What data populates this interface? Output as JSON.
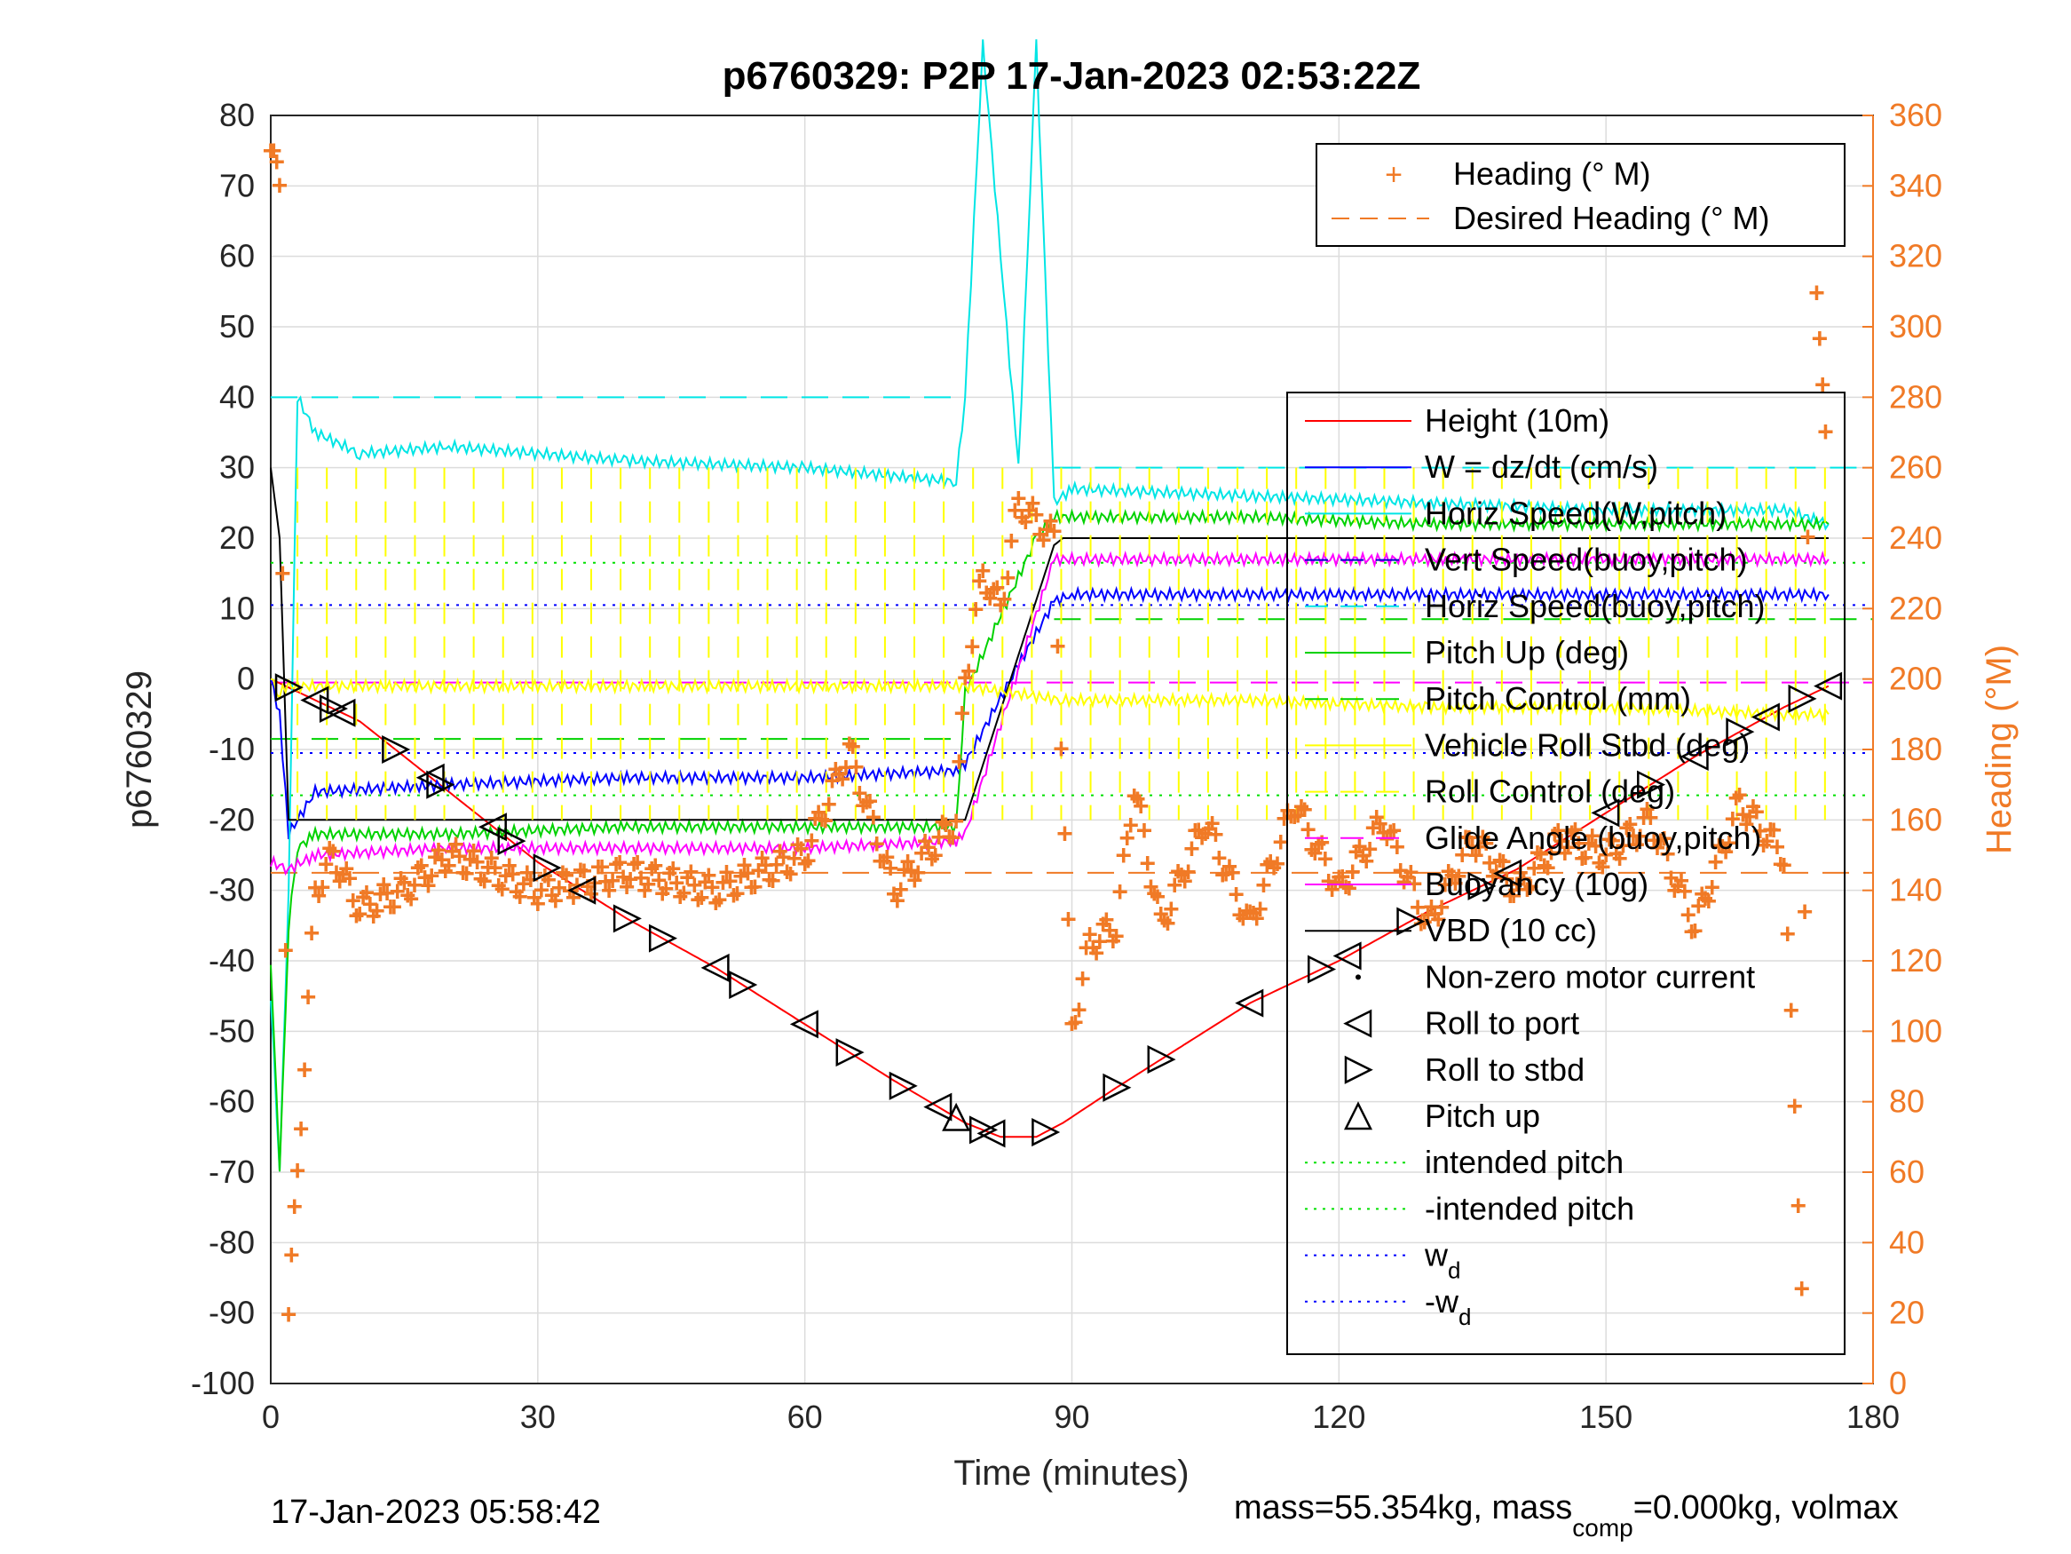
{
  "chart_data": {
    "type": "line",
    "title": "p6760329: P2P 17-Jan-2023 02:53:22Z",
    "xlabel": "Time (minutes)",
    "ylabel": "p6760329",
    "ylabel_right": "Heading (°M)",
    "xlim": [
      0,
      180
    ],
    "ylim": [
      -100,
      80
    ],
    "ylim_right": [
      0,
      360
    ],
    "x_ticks": [
      "0",
      "30",
      "60",
      "90",
      "120",
      "150",
      "180"
    ],
    "y_ticks": [
      "80",
      "70",
      "60",
      "50",
      "40",
      "30",
      "20",
      "10",
      "0",
      "-10",
      "-20",
      "-30",
      "-40",
      "-50",
      "-60",
      "-70",
      "-80",
      "-90",
      "-100"
    ],
    "y_ticks_right": [
      "360",
      "340",
      "320",
      "300",
      "280",
      "260",
      "240",
      "220",
      "200",
      "180",
      "160",
      "140",
      "120",
      "100",
      "80",
      "60",
      "40",
      "20",
      "0"
    ],
    "grid": true,
    "colors": {
      "height": "#ff0000",
      "w": "#0000ff",
      "horiz_speed_w": "#00e5e5",
      "vert_speed_buoy": "#0000c8",
      "horiz_speed_buoy": "#00e5e5",
      "pitch_up": "#00d200",
      "pitch_control": "#00d200",
      "roll": "#ffff00",
      "glide": "#ff00ff",
      "buoyancy": "#ff00ff",
      "vbd": "#000000",
      "heading": "#f07a26",
      "intended_pitch": "#00e000",
      "wd": "#0000ff"
    },
    "legend_heading": {
      "placement": "top-right",
      "entries": [
        "Heading (° M)",
        "Desired Heading (° M)"
      ]
    },
    "legend_main": {
      "placement": "right",
      "entries": [
        {
          "label": "Height (10m)",
          "style": "solid",
          "color": "#ff0000"
        },
        {
          "label": "W = dz/dt (cm/s)",
          "style": "solid",
          "color": "#0000ff"
        },
        {
          "label": "Horiz Speed(W,pitch)",
          "style": "solid",
          "color": "#00e5e5"
        },
        {
          "label": "Vert Speed(buoy,pitch)",
          "style": "dashed",
          "color": "#0000c8"
        },
        {
          "label": "Horiz Speed(buoy,pitch)",
          "style": "dashed",
          "color": "#00e5e5"
        },
        {
          "label": "Pitch Up (deg)",
          "style": "solid",
          "color": "#00d200"
        },
        {
          "label": "Pitch Control (mm)",
          "style": "dashed",
          "color": "#00d200"
        },
        {
          "label": "Vehicle Roll Stbd (deg)",
          "style": "solid",
          "color": "#ffff00"
        },
        {
          "label": "Roll Control (deg)",
          "style": "dashed",
          "color": "#ffff00"
        },
        {
          "label": "Glide Angle (buoy,pitch)",
          "style": "dashed",
          "color": "#ff00ff"
        },
        {
          "label": "Buoyancy (10g)",
          "style": "solid",
          "color": "#ff00ff"
        },
        {
          "label": "VBD (10 cc)",
          "style": "solid",
          "color": "#000000"
        },
        {
          "label": "Non-zero motor current",
          "style": "dot",
          "color": "#000000"
        },
        {
          "label": "Roll to port",
          "style": "marker-left",
          "color": "#000000"
        },
        {
          "label": "Roll to stbd",
          "style": "marker-right",
          "color": "#000000"
        },
        {
          "label": "Pitch up",
          "style": "marker-up",
          "color": "#000000"
        },
        {
          "label": "intended pitch",
          "style": "dotted",
          "color": "#00e000"
        },
        {
          "label": "-intended pitch",
          "style": "dotted",
          "color": "#00e000"
        },
        {
          "label": "w",
          "sub": "d",
          "style": "dotted",
          "color": "#0000ff"
        },
        {
          "label": "-w",
          "sub": "d",
          "style": "dotted",
          "color": "#0000ff"
        }
      ]
    },
    "series": [
      {
        "name": "Height (10m)",
        "x": [
          0,
          10,
          20,
          30,
          40,
          50,
          60,
          70,
          78,
          82,
          86,
          89,
          95,
          100,
          110,
          120,
          130,
          140,
          150,
          160,
          170,
          175
        ],
        "y": [
          0,
          -6,
          -16,
          -26,
          -34,
          -41,
          -49,
          -57,
          -63,
          -65,
          -65,
          -63,
          -58,
          -54,
          -46,
          -40,
          -33,
          -27,
          -19,
          -11,
          -4,
          -1
        ]
      },
      {
        "name": "W = dz/dt (cm/s)",
        "x": [
          0,
          1,
          2,
          5,
          20,
          40,
          60,
          77,
          78,
          84,
          88,
          90,
          110,
          130,
          150,
          170,
          175
        ],
        "y": [
          0,
          -5,
          -22,
          -16,
          -15,
          -14,
          -14,
          -13,
          -12,
          2,
          11,
          12,
          12,
          12,
          12,
          12,
          12
        ]
      },
      {
        "name": "Horiz Speed(W,pitch)",
        "x": [
          0,
          1,
          2,
          3,
          5,
          10,
          20,
          40,
          60,
          77,
          78,
          80,
          84,
          86,
          88,
          90,
          110,
          130,
          150,
          170,
          175
        ],
        "y": [
          -45,
          -70,
          -30,
          40,
          35,
          32,
          33,
          31,
          30,
          28,
          40,
          90,
          30,
          90,
          25,
          27,
          26,
          25,
          24,
          24,
          22
        ]
      },
      {
        "name": "Pitch Up (deg)",
        "x": [
          0,
          1,
          2,
          3,
          5,
          20,
          40,
          60,
          77,
          78,
          86,
          88,
          90,
          110,
          130,
          150,
          170,
          175
        ],
        "y": [
          -40,
          -70,
          -35,
          -24,
          -22,
          -22,
          -21,
          -21,
          -21,
          -2,
          20,
          23,
          23,
          23,
          22,
          22,
          22,
          22
        ]
      },
      {
        "name": "Buoyancy (10g)",
        "x": [
          0,
          2,
          5,
          20,
          40,
          60,
          77,
          78,
          88,
          89,
          110,
          130,
          150,
          170,
          175
        ],
        "y": [
          -26,
          -27,
          -25,
          -24,
          -24,
          -24,
          -23,
          -22,
          17,
          17,
          17,
          17,
          17,
          17,
          17
        ]
      },
      {
        "name": "VBD (10 cc)",
        "x": [
          0,
          1,
          2,
          77,
          78,
          88,
          89,
          175
        ],
        "y": [
          30,
          20,
          -20,
          -20,
          -20,
          19,
          20,
          20
        ]
      },
      {
        "name": "Vehicle Roll Stbd (deg)",
        "x": [
          0,
          1,
          2,
          40,
          77,
          78,
          89,
          110,
          130,
          150,
          170,
          175
        ],
        "y": [
          0,
          -2,
          -1,
          -1,
          -1,
          -1,
          -3,
          -3,
          -4,
          -4,
          -5,
          -5
        ]
      },
      {
        "name": "Heading (° M)",
        "axis": "right",
        "x": [
          0,
          1,
          2,
          3,
          5,
          7,
          10,
          15,
          20,
          30,
          40,
          50,
          60,
          65,
          70,
          77,
          78,
          80,
          82,
          84,
          86,
          88,
          90,
          92,
          95,
          97,
          100,
          105,
          110,
          115,
          120,
          125,
          130,
          135,
          140,
          145,
          150,
          155,
          160,
          165,
          170,
          172,
          173,
          174,
          175
        ],
        "y": [
          350,
          340,
          20,
          60,
          140,
          150,
          135,
          140,
          150,
          140,
          145,
          140,
          150,
          180,
          140,
          160,
          200,
          230,
          220,
          250,
          245,
          240,
          100,
          125,
          130,
          170,
          130,
          160,
          130,
          165,
          140,
          160,
          130,
          155,
          140,
          155,
          150,
          160,
          130,
          165,
          150,
          30,
          340,
          300,
          250
        ]
      }
    ],
    "reference_lines": [
      {
        "name": "intended pitch",
        "y": 16.5
      },
      {
        "name": "-intended pitch",
        "y": -16.5
      },
      {
        "name": "w_d",
        "y": 10.5
      },
      {
        "name": "-w_d",
        "y": -10.5
      },
      {
        "name": "Pitch Control (mm) dive",
        "y": -8.5
      },
      {
        "name": "Pitch Control (mm) climb",
        "y": 8.5
      },
      {
        "name": "Horiz Speed(buoy,pitch) dive",
        "y": 40
      },
      {
        "name": "Horiz Speed(buoy,pitch) climb",
        "y": 30
      },
      {
        "name": "Desired Heading (° M)",
        "axis": "right",
        "y": 145
      },
      {
        "name": "Glide Angle (buoy,pitch)",
        "y": -0.5
      }
    ],
    "markers": {
      "roll_port_x": [
        5,
        8,
        18,
        25,
        35,
        50,
        60,
        75,
        81,
        110,
        121,
        139,
        150,
        160,
        168,
        175
      ],
      "roll_stbd_x": [
        2,
        7,
        14,
        19,
        27,
        31,
        40,
        44,
        53,
        65,
        71,
        80,
        87,
        95,
        100,
        118,
        128,
        136,
        155,
        165,
        172
      ],
      "pitch_up_x": [
        77
      ]
    }
  },
  "footer": {
    "timestamp": "17-Jan-2023 05:58:42",
    "mass_text": "mass=55.354kg, mass",
    "mass_sub": "comp",
    "mass_tail": "=0.000kg, volmax"
  }
}
